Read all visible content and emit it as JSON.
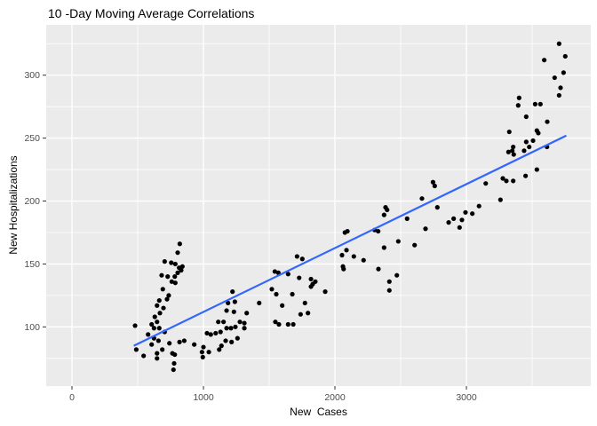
{
  "chart_data": {
    "type": "scatter",
    "title": "10 -Day Moving Average Correlations",
    "xlabel": "New  Cases",
    "ylabel": "New Hospitalizations",
    "x_ticks": [
      0,
      1000,
      2000,
      3000
    ],
    "y_ticks": [
      100,
      150,
      200,
      250,
      300
    ],
    "x_minor_gridlines": [
      500,
      1500,
      2500,
      3500
    ],
    "y_minor_gridlines": [
      75,
      125,
      175,
      225,
      275,
      325
    ],
    "xlim": [
      -196,
      3946
    ],
    "ylim": [
      53,
      340
    ],
    "grid": "white major and minor gridlines on gray panel",
    "legend_position": "none",
    "colors": {
      "point": "#000000",
      "trend_line": "#3366FF",
      "panel_background": "#EBEBEB",
      "gridline": "#FFFFFF",
      "tick_mark": "#333333",
      "tick_label": "#4D4D4D",
      "title": "#000000",
      "page_background": "#FFFFFF"
    },
    "trend_line": {
      "x1": 470,
      "y1": 85,
      "x2": 3760,
      "y2": 252
    },
    "points": [
      [
        820,
        166
      ],
      [
        804,
        159
      ],
      [
        705,
        152
      ],
      [
        755,
        151
      ],
      [
        786,
        150
      ],
      [
        815,
        147
      ],
      [
        682,
        141
      ],
      [
        728,
        140
      ],
      [
        782,
        140
      ],
      [
        804,
        143
      ],
      [
        831,
        145
      ],
      [
        840,
        148
      ],
      [
        759,
        136
      ],
      [
        786,
        135
      ],
      [
        691,
        130
      ],
      [
        736,
        125
      ],
      [
        723,
        122
      ],
      [
        664,
        121
      ],
      [
        647,
        117
      ],
      [
        696,
        115
      ],
      [
        669,
        111
      ],
      [
        630,
        108
      ],
      [
        647,
        104
      ],
      [
        606,
        102
      ],
      [
        480,
        101
      ],
      [
        624,
        99
      ],
      [
        664,
        99
      ],
      [
        705,
        96
      ],
      [
        579,
        94
      ],
      [
        624,
        91
      ],
      [
        658,
        89
      ],
      [
        606,
        86
      ],
      [
        741,
        87
      ],
      [
        818,
        88
      ],
      [
        854,
        89
      ],
      [
        930,
        86
      ],
      [
        489,
        82
      ],
      [
        545,
        77
      ],
      [
        647,
        75
      ],
      [
        782,
        78
      ],
      [
        772,
        66
      ],
      [
        989,
        80
      ],
      [
        687,
        82
      ],
      [
        647,
        79
      ],
      [
        764,
        79
      ],
      [
        777,
        71
      ],
      [
        995,
        76
      ],
      [
        1041,
        80
      ],
      [
        1712,
        156
      ],
      [
        1752,
        154
      ],
      [
        1543,
        144
      ],
      [
        1570,
        143
      ],
      [
        1644,
        142
      ],
      [
        1728,
        139
      ],
      [
        1818,
        138
      ],
      [
        1831,
        134
      ],
      [
        1818,
        132
      ],
      [
        1221,
        128
      ],
      [
        1520,
        130
      ],
      [
        1554,
        126
      ],
      [
        1676,
        126
      ],
      [
        1187,
        119
      ],
      [
        1239,
        120
      ],
      [
        1424,
        119
      ],
      [
        1599,
        117
      ],
      [
        1772,
        119
      ],
      [
        1176,
        113
      ],
      [
        1232,
        112
      ],
      [
        1329,
        111
      ],
      [
        1795,
        111
      ],
      [
        1739,
        110
      ],
      [
        1113,
        104
      ],
      [
        1153,
        104
      ],
      [
        1277,
        104
      ],
      [
        1311,
        103
      ],
      [
        1547,
        104
      ],
      [
        1574,
        102
      ],
      [
        1644,
        102
      ],
      [
        1683,
        102
      ],
      [
        1093,
        95
      ],
      [
        1130,
        96
      ],
      [
        1176,
        99
      ],
      [
        1209,
        99
      ],
      [
        1243,
        100
      ],
      [
        1311,
        99
      ],
      [
        1027,
        95
      ],
      [
        1056,
        94
      ],
      [
        1169,
        89
      ],
      [
        1214,
        88
      ],
      [
        1259,
        91
      ],
      [
        1137,
        85
      ],
      [
        1120,
        82
      ],
      [
        1000,
        84
      ],
      [
        2385,
        195
      ],
      [
        2397,
        193
      ],
      [
        2374,
        189
      ],
      [
        2549,
        186
      ],
      [
        2076,
        175
      ],
      [
        2095,
        176
      ],
      [
        2302,
        177
      ],
      [
        2329,
        176
      ],
      [
        2482,
        168
      ],
      [
        2606,
        165
      ],
      [
        2374,
        163
      ],
      [
        2088,
        161
      ],
      [
        2054,
        157
      ],
      [
        2144,
        156
      ],
      [
        2218,
        153
      ],
      [
        2061,
        148
      ],
      [
        2066,
        146
      ],
      [
        2331,
        146
      ],
      [
        2471,
        141
      ],
      [
        2414,
        136
      ],
      [
        2414,
        129
      ],
      [
        1926,
        128
      ],
      [
        1851,
        136
      ],
      [
        3320,
        239
      ],
      [
        3349,
        240
      ],
      [
        3360,
        237
      ],
      [
        2746,
        215
      ],
      [
        2759,
        212
      ],
      [
        3147,
        214
      ],
      [
        3277,
        218
      ],
      [
        3304,
        216
      ],
      [
        2662,
        202
      ],
      [
        2779,
        195
      ],
      [
        3096,
        196
      ],
      [
        3259,
        201
      ],
      [
        2993,
        191
      ],
      [
        3045,
        190
      ],
      [
        2865,
        183
      ],
      [
        2903,
        186
      ],
      [
        2966,
        185
      ],
      [
        2948,
        179
      ],
      [
        2689,
        178
      ],
      [
        3705,
        325
      ],
      [
        3752,
        315
      ],
      [
        3592,
        312
      ],
      [
        3671,
        298
      ],
      [
        3739,
        302
      ],
      [
        3716,
        290
      ],
      [
        3705,
        284
      ],
      [
        3401,
        282
      ],
      [
        3394,
        276
      ],
      [
        3523,
        277
      ],
      [
        3563,
        277
      ],
      [
        3455,
        267
      ],
      [
        3615,
        263
      ],
      [
        3536,
        256
      ],
      [
        3547,
        254
      ],
      [
        3326,
        255
      ],
      [
        3507,
        248
      ],
      [
        3478,
        243
      ],
      [
        3439,
        240
      ],
      [
        3356,
        243
      ],
      [
        3613,
        243
      ],
      [
        3536,
        225
      ],
      [
        3450,
        220
      ],
      [
        3356,
        216
      ],
      [
        3455,
        247
      ]
    ]
  }
}
